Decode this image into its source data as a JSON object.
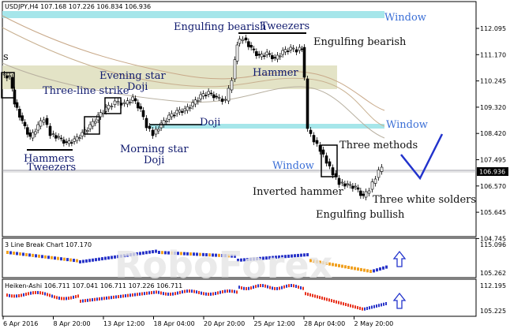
{
  "main_chart": {
    "header": "USDJPY,H4  107.168 107.226 106.834 106.936",
    "price_axis": [
      "112.095",
      "111.170",
      "110.245",
      "109.320",
      "108.420",
      "107.495",
      "106.570",
      "105.645",
      "104.745"
    ],
    "current_price": "106.936",
    "annotations": {
      "window_top": "Window",
      "engulfing_bearish_left": "Engulfing bearish",
      "tweezers_top": "Tweezers",
      "engulfing_bearish_right": "Engulfing bearish",
      "s_label": "s",
      "evening_star": "Evening star",
      "doji_1": "Doji",
      "three_line_strike": "Three-line strike",
      "hammer_top": "Hammer",
      "doji_2": "Doji",
      "window_mid": "Window",
      "morning_star": "Morning star",
      "doji_3": "Doji",
      "three_methods": "Three methods",
      "hammers": "Hammers",
      "tweezers_bottom": "Tweezers",
      "window_low": "Window",
      "inverted_hammer": "Inverted hammer",
      "three_white_soldiers": "Three white solders",
      "engulfing_bullish": "Engulfing bullish"
    }
  },
  "indicator_1": {
    "header": "3 Line Break Chart 107.170",
    "axis": [
      "115.096",
      "105.262"
    ]
  },
  "indicator_2": {
    "header": "Heiken-Ashi 106.711 107.041 106.711 107.226 106.711",
    "axis": [
      "112.195",
      "105.225"
    ]
  },
  "time_axis": [
    "6 Apr 2016",
    "8 Apr 20:00",
    "13 Apr 12:00",
    "18 Apr 04:00",
    "20 Apr 20:00",
    "25 Apr 12:00",
    "28 Apr 04:00",
    "2 May 20:00"
  ],
  "watermark": "RoboForex",
  "colors": {
    "bull": "#2a35c8",
    "bear": "#e8331f",
    "orange": "#f0a020",
    "window_band": "#a6e6ea",
    "zone": "#d8d8b0"
  }
}
